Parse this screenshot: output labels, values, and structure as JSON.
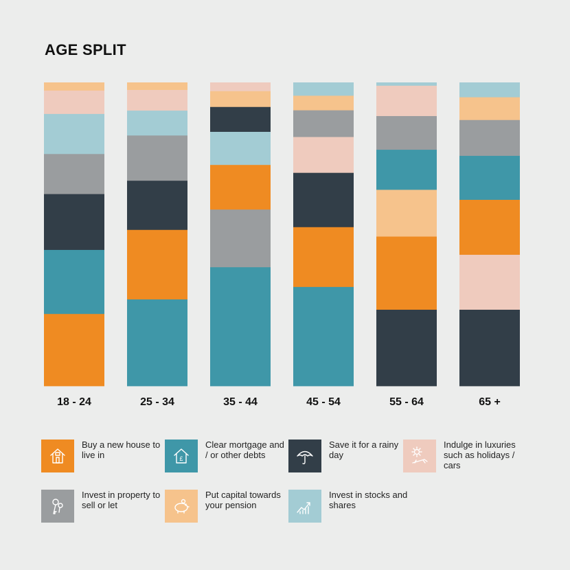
{
  "title": "AGE SPLIT",
  "colors": {
    "buy_house": "#ef8b22",
    "clear_mortgage": "#3f97a8",
    "save": "#323e48",
    "indulge": "#efcbbe",
    "invest_property": "#9a9d9f",
    "pension": "#f6c38c",
    "stocks": "#a3ccd4"
  },
  "legend": [
    {
      "key": "buy_house",
      "label": "Buy a new house to live in",
      "icon": "house-icon"
    },
    {
      "key": "clear_mortgage",
      "label": "Clear mortgage and / or other debts",
      "icon": "house-pound-icon"
    },
    {
      "key": "save",
      "label": "Save it for a rainy day",
      "icon": "umbrella-icon"
    },
    {
      "key": "indulge",
      "label": "Indulge in luxuries such as holidays / cars",
      "icon": "sun-lounger-icon"
    },
    {
      "key": "invest_property",
      "label": "Invest in property to sell or let",
      "icon": "keys-icon"
    },
    {
      "key": "pension",
      "label": "Put capital towards your pension",
      "icon": "piggy-bank-icon"
    },
    {
      "key": "stocks",
      "label": "Invest in stocks and shares",
      "icon": "rising-chart-icon"
    }
  ],
  "chart_data": {
    "type": "bar",
    "stacked": true,
    "ylim": [
      0,
      100
    ],
    "categories": [
      "18 - 24",
      "25 - 34",
      "35 - 44",
      "45 - 54",
      "55 - 64",
      "65 +"
    ],
    "stacks": [
      [
        {
          "key": "buy_house",
          "value": 23.8
        },
        {
          "key": "clear_mortgage",
          "value": 21.1
        },
        {
          "key": "save",
          "value": 18.4
        },
        {
          "key": "invest_property",
          "value": 13.2
        },
        {
          "key": "stocks",
          "value": 13.2
        },
        {
          "key": "indulge",
          "value": 7.7
        },
        {
          "key": "pension",
          "value": 2.6
        }
      ],
      [
        {
          "key": "clear_mortgage",
          "value": 28.6
        },
        {
          "key": "buy_house",
          "value": 22.9
        },
        {
          "key": "save",
          "value": 16.2
        },
        {
          "key": "invest_property",
          "value": 14.9
        },
        {
          "key": "stocks",
          "value": 8.2
        },
        {
          "key": "indulge",
          "value": 6.8
        },
        {
          "key": "pension",
          "value": 2.4
        }
      ],
      [
        {
          "key": "clear_mortgage",
          "value": 39.2
        },
        {
          "key": "invest_property",
          "value": 19.0
        },
        {
          "key": "buy_house",
          "value": 14.7
        },
        {
          "key": "stocks",
          "value": 10.9
        },
        {
          "key": "save",
          "value": 8.2
        },
        {
          "key": "pension",
          "value": 5.2
        },
        {
          "key": "indulge",
          "value": 2.8
        }
      ],
      [
        {
          "key": "clear_mortgage",
          "value": 32.7
        },
        {
          "key": "buy_house",
          "value": 19.7
        },
        {
          "key": "save",
          "value": 17.9
        },
        {
          "key": "indulge",
          "value": 11.8
        },
        {
          "key": "invest_property",
          "value": 8.8
        },
        {
          "key": "pension",
          "value": 4.8
        },
        {
          "key": "stocks",
          "value": 4.3
        }
      ],
      [
        {
          "key": "save",
          "value": 25.2
        },
        {
          "key": "buy_house",
          "value": 24.1
        },
        {
          "key": "pension",
          "value": 15.4
        },
        {
          "key": "clear_mortgage",
          "value": 13.2
        },
        {
          "key": "invest_property",
          "value": 11.1
        },
        {
          "key": "indulge",
          "value": 10.0
        },
        {
          "key": "stocks",
          "value": 1.0
        }
      ],
      [
        {
          "key": "save",
          "value": 25.2
        },
        {
          "key": "indulge",
          "value": 18.1
        },
        {
          "key": "buy_house",
          "value": 18.1
        },
        {
          "key": "clear_mortgage",
          "value": 14.5
        },
        {
          "key": "invest_property",
          "value": 11.8
        },
        {
          "key": "pension",
          "value": 7.5
        },
        {
          "key": "stocks",
          "value": 4.8
        }
      ]
    ]
  }
}
